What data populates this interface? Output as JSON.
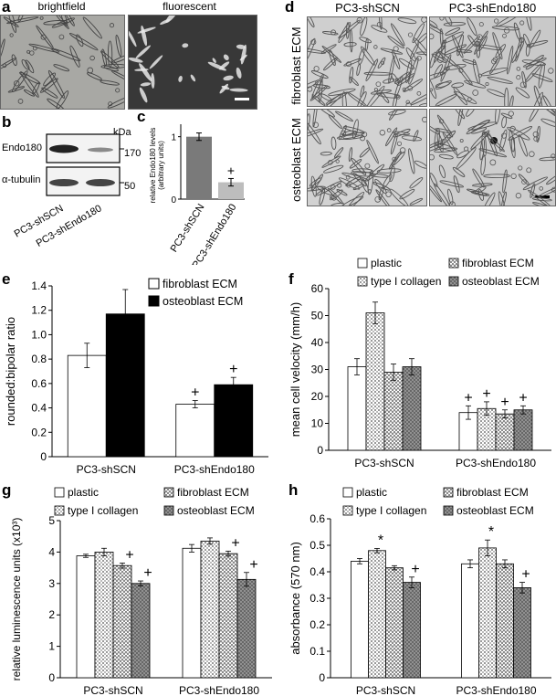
{
  "panels": {
    "a": {
      "label": "a",
      "images": [
        {
          "title": "brightfield",
          "bg": "#a9a9a6"
        },
        {
          "title": "fluorescent",
          "bg": "#3c3c3c"
        }
      ]
    },
    "b": {
      "label": "b",
      "kda": "kDa",
      "bands": [
        {
          "name": "Endo180",
          "mw": "170"
        },
        {
          "name": "α-tubulin",
          "mw": "50"
        }
      ],
      "lanes": [
        "PC3-shSCN",
        "PC3-shEndo180"
      ]
    },
    "c": {
      "label": "c",
      "ylabel": "relative Endo180 levels (arbitrary units)",
      "ylabel_line1": "relative Endo180 levels",
      "ylabel_line2": "(arbitrary units)",
      "categories": [
        "PC3-shSCN",
        "PC3-shEndo180"
      ],
      "ticks": [
        "0",
        "1"
      ],
      "marker": "+"
    },
    "d": {
      "label": "d",
      "col_headers": [
        "PC3-shSCN",
        "PC3-shEndo180"
      ],
      "row_headers": [
        "fibroblast ECM",
        "osteoblast ECM"
      ]
    },
    "e": {
      "label": "e"
    },
    "f": {
      "label": "f"
    },
    "g": {
      "label": "g"
    },
    "h": {
      "label": "h"
    }
  },
  "legends": {
    "e": [
      "fibroblast ECM",
      "osteoblast ECM"
    ],
    "four": [
      "plastic",
      "fibroblast ECM",
      "type I collagen",
      "osteoblast ECM"
    ]
  },
  "chart_data": [
    {
      "id": "c",
      "type": "bar",
      "categories": [
        "PC3-shSCN",
        "PC3-shEndo180"
      ],
      "values": [
        1.0,
        0.27
      ],
      "errors": [
        0.06,
        0.06
      ],
      "ylim": [
        0,
        1.2
      ],
      "ylabel": "relative Endo180 levels (arbitrary units)",
      "colors": [
        "#7a7a7a",
        "#bdbdbd"
      ],
      "markers": [
        "",
        "+"
      ]
    },
    {
      "id": "e",
      "type": "bar",
      "ylabel": "rounded:bipolar ratio",
      "ylim": [
        0,
        1.4
      ],
      "yticks": [
        "0",
        "0.2",
        "0.4",
        "0.6",
        "0.8",
        "1.0",
        "1.2",
        "1.4"
      ],
      "categories": [
        "PC3-shSCN",
        "PC3-shEndo180"
      ],
      "series": [
        {
          "name": "fibroblast ECM",
          "values": [
            0.83,
            0.43
          ],
          "errors": [
            0.1,
            0.03
          ],
          "markers": [
            "",
            "+"
          ]
        },
        {
          "name": "osteoblast ECM",
          "values": [
            1.17,
            0.59
          ],
          "errors": [
            0.2,
            0.06
          ],
          "markers": [
            "",
            "+"
          ]
        }
      ]
    },
    {
      "id": "f",
      "type": "bar",
      "ylabel": "mean cell velocity (mm/h)",
      "ylim": [
        0,
        60
      ],
      "yticks": [
        "0",
        "10",
        "20",
        "30",
        "40",
        "50",
        "60"
      ],
      "categories": [
        "PC3-shSCN",
        "PC3-shEndo180"
      ],
      "series": [
        {
          "name": "plastic",
          "values": [
            31,
            14
          ],
          "errors": [
            3,
            2.5
          ],
          "markers": [
            "",
            "+"
          ]
        },
        {
          "name": "type I collagen",
          "values": [
            51,
            15.5
          ],
          "errors": [
            4,
            2.5
          ],
          "markers": [
            "",
            "+"
          ]
        },
        {
          "name": "fibroblast ECM",
          "values": [
            29,
            13.5
          ],
          "errors": [
            3,
            1.5
          ],
          "markers": [
            "",
            "+"
          ]
        },
        {
          "name": "osteoblast ECM",
          "values": [
            31,
            15
          ],
          "errors": [
            3,
            1.5
          ],
          "markers": [
            "",
            "+"
          ]
        }
      ]
    },
    {
      "id": "g",
      "type": "bar",
      "ylabel": "relative luminescence units (x10³)",
      "ylim": [
        0,
        5
      ],
      "yticks": [
        "0",
        "1",
        "2",
        "3",
        "4",
        "5"
      ],
      "categories": [
        "PC3-shSCN",
        "PC3-shEndo180"
      ],
      "series": [
        {
          "name": "plastic",
          "values": [
            3.88,
            4.12
          ],
          "errors": [
            0.05,
            0.12
          ],
          "markers": [
            "",
            ""
          ]
        },
        {
          "name": "type I collagen",
          "values": [
            4.0,
            4.35
          ],
          "errors": [
            0.12,
            0.1
          ],
          "markers": [
            "",
            ""
          ]
        },
        {
          "name": "fibroblast ECM",
          "values": [
            3.57,
            3.95
          ],
          "errors": [
            0.08,
            0.08
          ],
          "markers": [
            "+",
            "+"
          ]
        },
        {
          "name": "osteoblast ECM",
          "values": [
            3.0,
            3.13
          ],
          "errors": [
            0.08,
            0.22
          ],
          "markers": [
            "+",
            "+"
          ]
        }
      ]
    },
    {
      "id": "h",
      "type": "bar",
      "ylabel": "absorbance (570 nm)",
      "ylim": [
        0,
        0.6
      ],
      "yticks": [
        "0",
        "0.1",
        "0.2",
        "0.3",
        "0.4",
        "0.5",
        "0.6"
      ],
      "categories": [
        "PC3-shSCN",
        "PC3-shEndo180"
      ],
      "series": [
        {
          "name": "plastic",
          "values": [
            0.44,
            0.43
          ],
          "errors": [
            0.01,
            0.015
          ],
          "markers": [
            "",
            ""
          ]
        },
        {
          "name": "type I collagen",
          "values": [
            0.48,
            0.49
          ],
          "errors": [
            0.008,
            0.03
          ],
          "markers": [
            "*",
            "*"
          ]
        },
        {
          "name": "fibroblast ECM",
          "values": [
            0.415,
            0.43
          ],
          "errors": [
            0.008,
            0.015
          ],
          "markers": [
            "",
            ""
          ]
        },
        {
          "name": "osteoblast ECM",
          "values": [
            0.36,
            0.34
          ],
          "errors": [
            0.02,
            0.02
          ],
          "markers": [
            "+",
            "+"
          ]
        }
      ]
    }
  ]
}
